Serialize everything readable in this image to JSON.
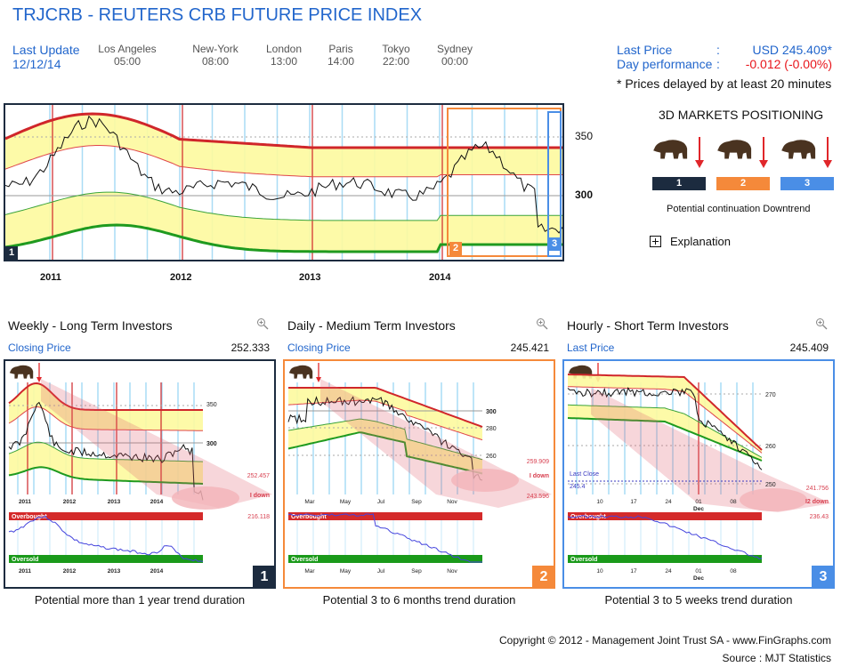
{
  "header": {
    "title": "TRJCRB - REUTERS CRB FUTURE PRICE INDEX",
    "last_update_label": "Last Update",
    "last_update_date": "12/12/14",
    "cities": [
      {
        "name": "Los Angeles",
        "time": "05:00"
      },
      {
        "name": "New-York",
        "time": "08:00"
      },
      {
        "name": "London",
        "time": "13:00"
      },
      {
        "name": "Paris",
        "time": "14:00"
      },
      {
        "name": "Tokyo",
        "time": "22:00"
      },
      {
        "name": "Sydney",
        "time": "00:00"
      }
    ]
  },
  "quote": {
    "last_price_label": "Last Price",
    "last_price_value": "USD 245.409*",
    "day_perf_label": "Day performance",
    "day_perf_value": "-0.012 (-0.00%)",
    "colon": ":",
    "delay_note": "* Prices delayed by at least 20 minutes",
    "negative_color": "#e8151b",
    "accent_color": "#2266cc"
  },
  "positioning": {
    "title": "3D MARKETS POSITIONING",
    "horizons": [
      {
        "number": "1",
        "color": "#1c2b3f",
        "icon": "bear-icon",
        "trend": "down-arrow-icon"
      },
      {
        "number": "2",
        "color": "#f5893a",
        "icon": "bear-icon",
        "trend": "down-arrow-icon"
      },
      {
        "number": "3",
        "color": "#4a8ee6",
        "icon": "bear-icon",
        "trend": "down-arrow-icon"
      }
    ],
    "summary": "Potential continuation Downtrend",
    "explanation_label": "Explanation"
  },
  "main_chart": {
    "y_ticks": [
      "350",
      "300"
    ],
    "x_ticks": [
      "2011",
      "2012",
      "2013",
      "2014"
    ],
    "badges": [
      "1",
      "2",
      "3"
    ]
  },
  "panels": [
    {
      "title": "Weekly - Long Term Investors",
      "price_label": "Closing Price",
      "price_value": "252.333",
      "number": "1",
      "color": "#1c2b3f",
      "x_ticks": [
        "2011",
        "2012",
        "2013",
        "2014"
      ],
      "y_ticks": [
        "350",
        "300"
      ],
      "target_high": "252.457",
      "target_label": "I down",
      "target_low": "216.118",
      "overbought": "Overbought",
      "oversold": "Oversold",
      "caption": "Potential more than 1 year trend duration"
    },
    {
      "title": "Daily - Medium Term Investors",
      "price_label": "Closing Price",
      "price_value": "245.421",
      "number": "2",
      "color": "#f5893a",
      "x_ticks": [
        "Mar",
        "May",
        "Jul",
        "Sep",
        "Nov"
      ],
      "y_ticks": [
        "300",
        "280",
        "260"
      ],
      "target_high": "259.909",
      "target_label": "I down",
      "target_low": "243.596",
      "overbought": "Overbought",
      "oversold": "Oversold",
      "caption": "Potential 3 to 6 months trend duration"
    },
    {
      "title": "Hourly - Short Term Investors",
      "price_label": "Last Price",
      "price_value": "245.409",
      "number": "3",
      "color": "#4a8ee6",
      "x_ticks": [
        "10",
        "17",
        "24",
        "01",
        "08"
      ],
      "x_sub": "Dec",
      "y_ticks": [
        "270",
        "260",
        "250"
      ],
      "last_close_label": "Last Close",
      "last_close_value": "245.4",
      "target_high": "241.756",
      "target_label": "I2 down",
      "target_low": "236.43",
      "overbought": "Overbought",
      "oversold": "Oversold",
      "caption": "Potential 3 to 5 weeks trend duration"
    }
  ],
  "footer": {
    "copyright": "Copyright © 2012 - Management Joint Trust SA - www.FinGraphs.com",
    "source": "Source : MJT Statistics"
  }
}
